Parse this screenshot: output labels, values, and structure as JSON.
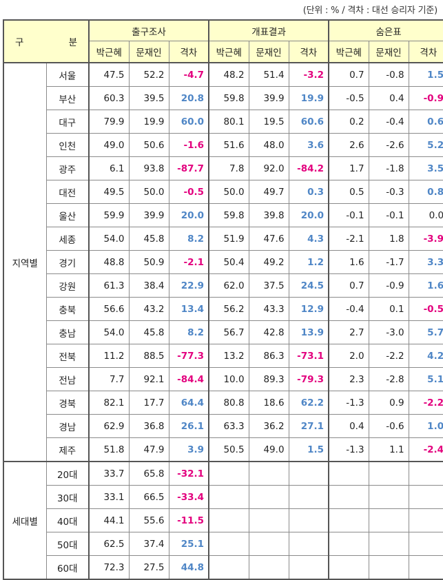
{
  "unit_note": "(단위 : % / 격차 : 대선 승리자 기준)",
  "header": {
    "col_gu": "구",
    "col_bun": "분",
    "groups": [
      "출구조사",
      "개표결과",
      "숨은표"
    ],
    "subcols": [
      "박근혜",
      "문재인",
      "격차"
    ]
  },
  "sections": [
    {
      "label": "지역별",
      "rows": [
        {
          "name": "서울",
          "v": [
            "47.5",
            "52.2",
            "-4.7",
            "48.2",
            "51.4",
            "-3.2",
            "0.7",
            "-0.8",
            "1.5"
          ]
        },
        {
          "name": "부산",
          "v": [
            "60.3",
            "39.5",
            "20.8",
            "59.8",
            "39.9",
            "19.9",
            "-0.5",
            "0.4",
            "-0.9"
          ]
        },
        {
          "name": "대구",
          "v": [
            "79.9",
            "19.9",
            "60.0",
            "80.1",
            "19.5",
            "60.6",
            "0.2",
            "-0.4",
            "0.6"
          ]
        },
        {
          "name": "인천",
          "v": [
            "49.0",
            "50.6",
            "-1.6",
            "51.6",
            "48.0",
            "3.6",
            "2.6",
            "-2.6",
            "5.2"
          ]
        },
        {
          "name": "광주",
          "v": [
            "6.1",
            "93.8",
            "-87.7",
            "7.8",
            "92.0",
            "-84.2",
            "1.7",
            "-1.8",
            "3.5"
          ]
        },
        {
          "name": "대전",
          "v": [
            "49.5",
            "50.0",
            "-0.5",
            "50.0",
            "49.7",
            "0.3",
            "0.5",
            "-0.3",
            "0.8"
          ]
        },
        {
          "name": "울산",
          "v": [
            "59.9",
            "39.9",
            "20.0",
            "59.8",
            "39.8",
            "20.0",
            "-0.1",
            "-0.1",
            "0.0"
          ]
        },
        {
          "name": "세종",
          "v": [
            "54.0",
            "45.8",
            "8.2",
            "51.9",
            "47.6",
            "4.3",
            "-2.1",
            "1.8",
            "-3.9"
          ]
        },
        {
          "name": "경기",
          "v": [
            "48.8",
            "50.9",
            "-2.1",
            "50.4",
            "49.2",
            "1.2",
            "1.6",
            "-1.7",
            "3.3"
          ]
        },
        {
          "name": "강원",
          "v": [
            "61.3",
            "38.4",
            "22.9",
            "62.0",
            "37.5",
            "24.5",
            "0.7",
            "-0.9",
            "1.6"
          ]
        },
        {
          "name": "충북",
          "v": [
            "56.6",
            "43.2",
            "13.4",
            "56.2",
            "43.3",
            "12.9",
            "-0.4",
            "0.1",
            "-0.5"
          ]
        },
        {
          "name": "충남",
          "v": [
            "54.0",
            "45.8",
            "8.2",
            "56.7",
            "42.8",
            "13.9",
            "2.7",
            "-3.0",
            "5.7"
          ]
        },
        {
          "name": "전북",
          "v": [
            "11.2",
            "88.5",
            "-77.3",
            "13.2",
            "86.3",
            "-73.1",
            "2.0",
            "-2.2",
            "4.2"
          ]
        },
        {
          "name": "전남",
          "v": [
            "7.7",
            "92.1",
            "-84.4",
            "10.0",
            "89.3",
            "-79.3",
            "2.3",
            "-2.8",
            "5.1"
          ]
        },
        {
          "name": "경북",
          "v": [
            "82.1",
            "17.7",
            "64.4",
            "80.8",
            "18.6",
            "62.2",
            "-1.3",
            "0.9",
            "-2.2"
          ]
        },
        {
          "name": "경남",
          "v": [
            "62.9",
            "36.8",
            "26.1",
            "63.3",
            "36.2",
            "27.1",
            "0.4",
            "-0.6",
            "1.0"
          ]
        },
        {
          "name": "제주",
          "v": [
            "51.8",
            "47.9",
            "3.9",
            "50.5",
            "49.0",
            "1.5",
            "-1.3",
            "1.1",
            "-2.4"
          ]
        }
      ]
    },
    {
      "label": "세대별",
      "rows": [
        {
          "name": "20대",
          "v": [
            "33.7",
            "65.8",
            "-32.1",
            "",
            "",
            "",
            "",
            "",
            ""
          ]
        },
        {
          "name": "30대",
          "v": [
            "33.1",
            "66.5",
            "-33.4",
            "",
            "",
            "",
            "",
            "",
            ""
          ]
        },
        {
          "name": "40대",
          "v": [
            "44.1",
            "55.6",
            "-11.5",
            "",
            "",
            "",
            "",
            "",
            ""
          ]
        },
        {
          "name": "50대",
          "v": [
            "62.5",
            "37.4",
            "25.1",
            "",
            "",
            "",
            "",
            "",
            ""
          ]
        },
        {
          "name": "60대",
          "v": [
            "72.3",
            "27.5",
            "44.8",
            "",
            "",
            "",
            "",
            "",
            ""
          ]
        }
      ]
    }
  ],
  "colors": {
    "positive": "#4f86c6",
    "negative": "#e3007e",
    "header_bg": "#ffffcc"
  }
}
